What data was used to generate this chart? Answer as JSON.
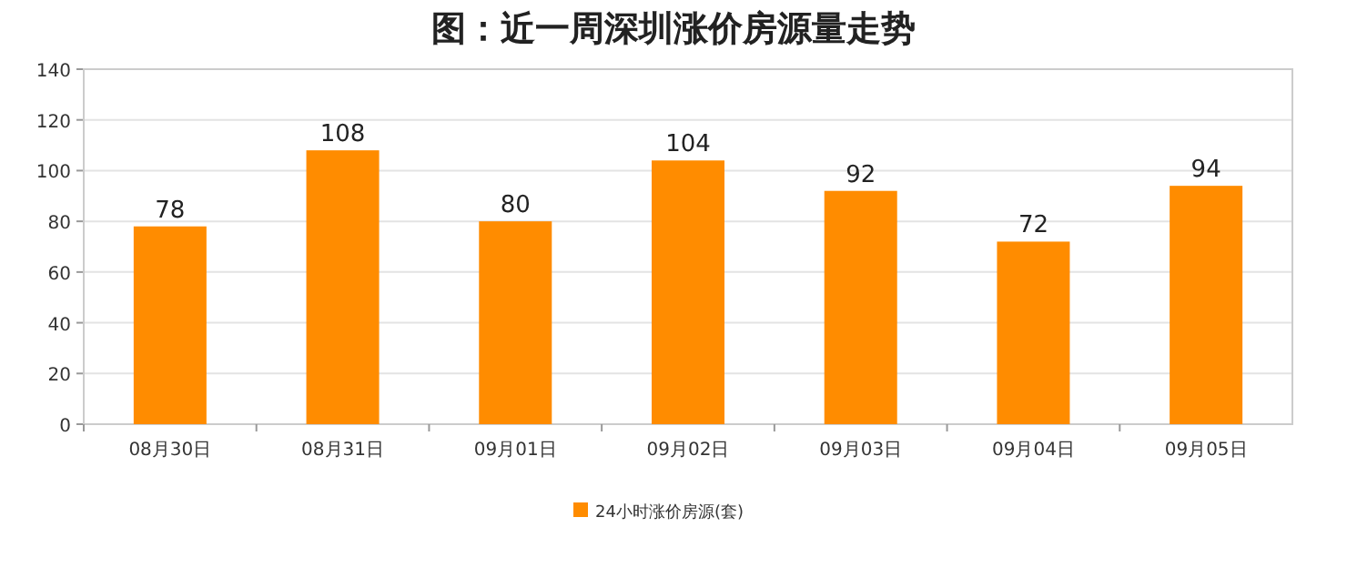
{
  "chart_data": {
    "type": "bar",
    "title": "图：近一周深圳涨价房源量走势",
    "categories": [
      "08月30日",
      "08月31日",
      "09月01日",
      "09月02日",
      "09月03日",
      "09月04日",
      "09月05日"
    ],
    "series": [
      {
        "name": "24小时涨价房源(套)",
        "color": "#ff8c00",
        "values": [
          78,
          108,
          80,
          104,
          92,
          72,
          94
        ]
      }
    ],
    "ylim": [
      0,
      140
    ],
    "yticks": [
      0,
      20,
      40,
      60,
      80,
      100,
      120,
      140
    ],
    "grid": "y",
    "legend": "bottom",
    "data_labels": true
  }
}
